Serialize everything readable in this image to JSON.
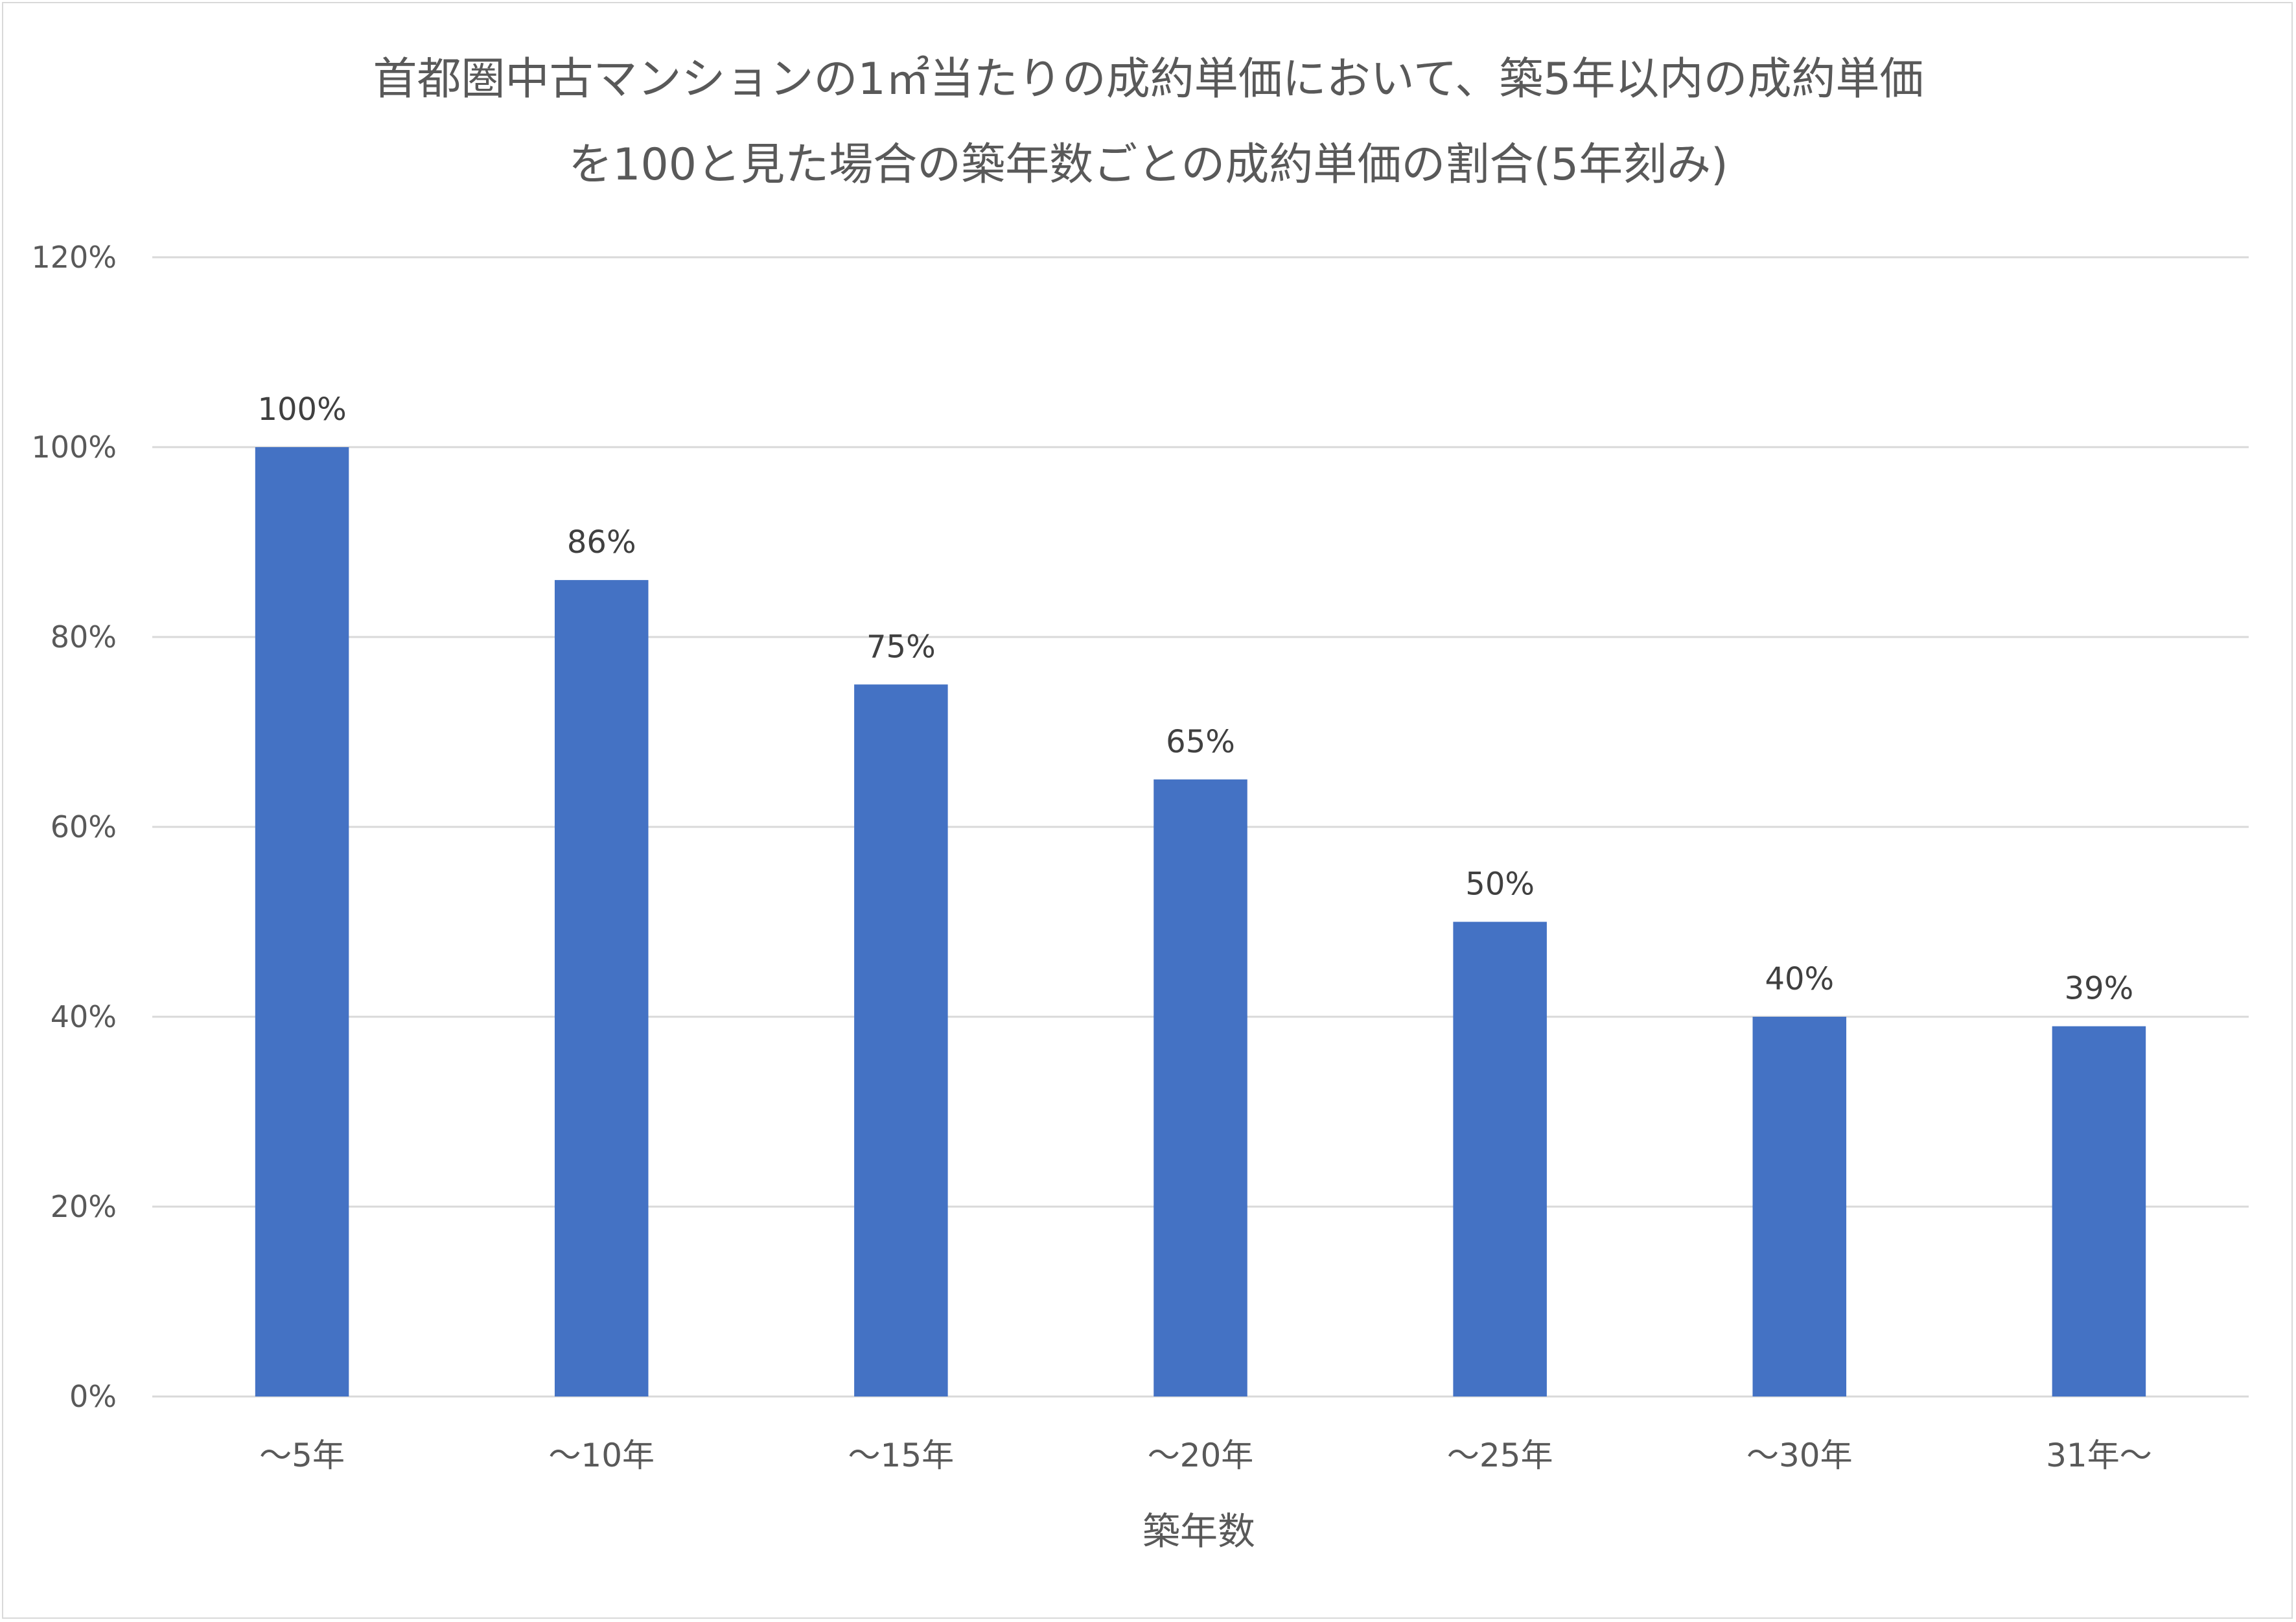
{
  "chart_data": {
    "type": "bar",
    "title_lines": [
      "首都圏中古マンションの1㎡当たりの成約単価において、築5年以内の成約単価",
      "を100と見た場合の築年数ごとの成約単価の割合(5年刻み)"
    ],
    "xlabel": "築年数",
    "ylabel": "",
    "categories": [
      "～5年",
      "～10年",
      "～15年",
      "～20年",
      "～25年",
      "～30年",
      "31年～"
    ],
    "values": [
      100,
      86,
      75,
      65,
      50,
      40,
      39
    ],
    "data_labels": [
      "100%",
      "86%",
      "75%",
      "65%",
      "50%",
      "40%",
      "39%"
    ],
    "ylim": [
      0,
      120
    ],
    "yticks": [
      0,
      20,
      40,
      60,
      80,
      100,
      120
    ],
    "ytick_labels": [
      "0%",
      "20%",
      "40%",
      "60%",
      "80%",
      "100%",
      "120%"
    ],
    "grid": true,
    "legend": "none",
    "bar_color": "#4472c4"
  }
}
